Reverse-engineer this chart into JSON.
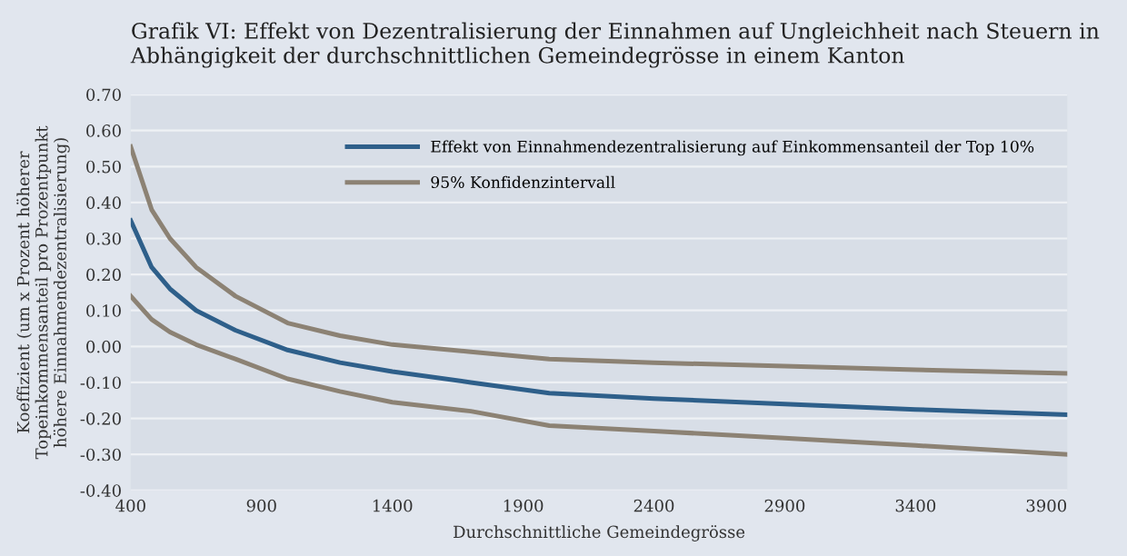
{
  "chart_data": {
    "type": "line",
    "title": "Grafik VI: Effekt von Dezentralisierung der Einnahmen auf Ungleichheit nach Steuern in Abhängigkeit der durchschnittlichen Gemeindegrösse in einem Kanton",
    "xlabel": "Durchschnittliche Gemeindegrösse",
    "ylabel": "Koeffizient (um x Prozent höherer Topeinkommensanteil pro Prozentpunkt höhere Einnahmendezentralisierung)",
    "series": [
      {
        "name": "Effekt von Einnahmendezentralisierung auf Einkommensanteil der Top 10%",
        "color": "#2e5f8a",
        "x": [
          400,
          480,
          550,
          650,
          800,
          1000,
          1200,
          1400,
          1700,
          2000,
          2400,
          2900,
          3400,
          3980
        ],
        "values": [
          0.35,
          0.22,
          0.16,
          0.1,
          0.045,
          -0.01,
          -0.045,
          -0.07,
          -0.1,
          -0.13,
          -0.145,
          -0.16,
          -0.175,
          -0.19
        ]
      },
      {
        "name": "95% Konfidenzintervall",
        "color": "#8c8274",
        "x": [
          400,
          480,
          550,
          650,
          800,
          1000,
          1200,
          1400,
          1700,
          2000,
          2400,
          2900,
          3400,
          3980
        ],
        "values": [
          0.555,
          0.38,
          0.3,
          0.22,
          0.14,
          0.065,
          0.03,
          0.005,
          -0.015,
          -0.035,
          -0.045,
          -0.055,
          -0.065,
          -0.075
        ]
      },
      {
        "color": "#8c8274",
        "x": [
          400,
          480,
          550,
          650,
          800,
          1000,
          1200,
          1400,
          1700,
          2000,
          2400,
          2900,
          3400,
          3980
        ],
        "values": [
          0.14,
          0.075,
          0.04,
          0.005,
          -0.035,
          -0.09,
          -0.125,
          -0.155,
          -0.18,
          -0.22,
          -0.235,
          -0.255,
          -0.275,
          -0.3
        ]
      }
    ],
    "xlim": [
      400,
      3980
    ],
    "xticks": [
      400,
      900,
      1400,
      1900,
      2400,
      2900,
      3400,
      3900
    ],
    "ylim": [
      -0.4,
      0.7
    ],
    "yticks": [
      {
        "value": -0.4,
        "label": "-0.40"
      },
      {
        "value": -0.3,
        "label": "-0.30"
      },
      {
        "value": -0.2,
        "label": "-0.20"
      },
      {
        "value": -0.1,
        "label": "-0.10"
      },
      {
        "value": 0,
        "label": "0.00"
      },
      {
        "value": 0.1,
        "label": "0.10"
      },
      {
        "value": 0.2,
        "label": "0.20"
      },
      {
        "value": 0.3,
        "label": "0.30"
      },
      {
        "value": 0.4,
        "label": "0.40"
      },
      {
        "value": 0.5,
        "label": "0.50"
      },
      {
        "value": 0.6,
        "label": "0.60"
      },
      {
        "value": 0.7,
        "label": "0.70"
      }
    ],
    "grid": "y",
    "legend": "top right",
    "marker": "none",
    "line_style": "solid"
  }
}
